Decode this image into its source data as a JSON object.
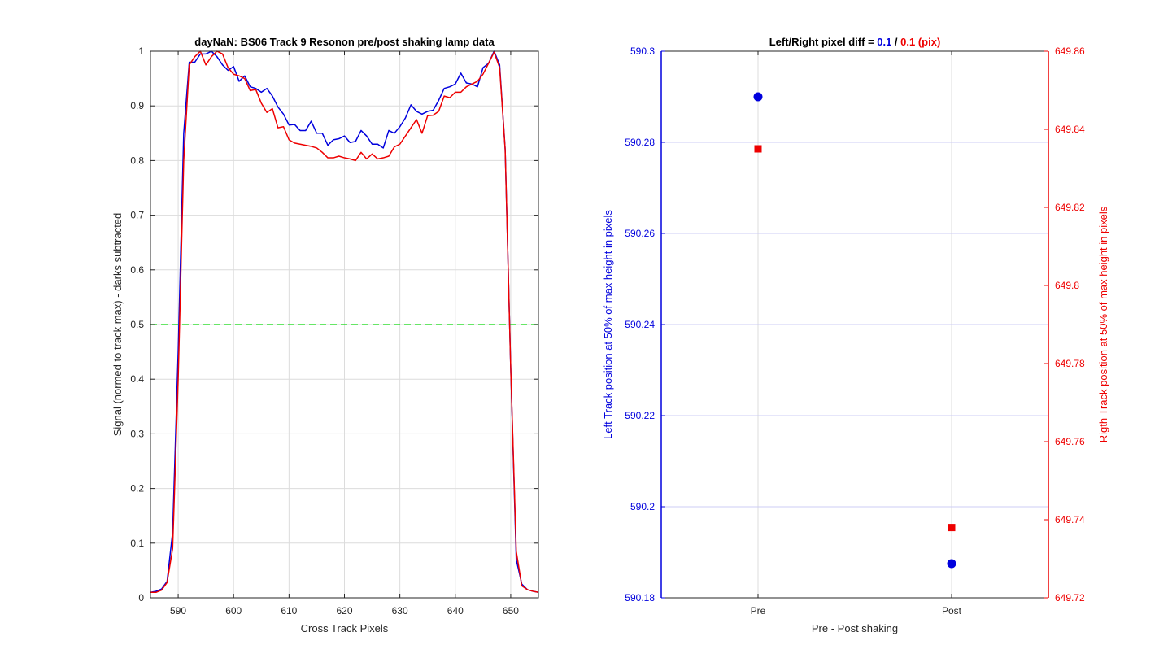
{
  "chart_data": [
    {
      "type": "line",
      "title": "dayNaN: BS06  Track 9 Resonon pre/post shaking lamp data",
      "xlabel": "Cross Track Pixels",
      "ylabel": "Signal (normed to track max) - darks subtracted",
      "xlim": [
        585,
        655
      ],
      "ylim": [
        0,
        1
      ],
      "xticks": [
        "590",
        "600",
        "610",
        "620",
        "630",
        "640",
        "650"
      ],
      "yticks": [
        "0",
        "0.1",
        "0.2",
        "0.3",
        "0.4",
        "0.5",
        "0.6",
        "0.7",
        "0.8",
        "0.9",
        "1"
      ],
      "grid": true,
      "threshold": {
        "y": 0.5,
        "color": "#33dd33",
        "style": "dashed"
      },
      "series": [
        {
          "color": "#0000dd",
          "x": [
            585,
            586,
            587,
            588,
            589,
            590,
            591,
            592,
            593,
            594,
            595,
            596,
            597,
            598,
            599,
            600,
            601,
            602,
            603,
            604,
            605,
            606,
            607,
            608,
            609,
            610,
            611,
            612,
            613,
            614,
            615,
            616,
            617,
            618,
            619,
            620,
            621,
            622,
            623,
            624,
            625,
            626,
            627,
            628,
            629,
            630,
            631,
            632,
            633,
            634,
            635,
            636,
            637,
            638,
            639,
            640,
            641,
            642,
            643,
            644,
            645,
            646,
            647,
            648,
            649,
            650,
            651,
            652,
            653,
            654,
            655
          ],
          "y": [
            0.01,
            0.012,
            0.016,
            0.03,
            0.12,
            0.45,
            0.85,
            0.98,
            0.98,
            0.995,
            0.995,
            1.0,
            0.99,
            0.975,
            0.965,
            0.972,
            0.945,
            0.955,
            0.935,
            0.932,
            0.925,
            0.932,
            0.918,
            0.898,
            0.885,
            0.865,
            0.866,
            0.855,
            0.855,
            0.872,
            0.85,
            0.85,
            0.828,
            0.838,
            0.84,
            0.845,
            0.833,
            0.835,
            0.855,
            0.845,
            0.83,
            0.83,
            0.823,
            0.855,
            0.85,
            0.862,
            0.878,
            0.902,
            0.89,
            0.885,
            0.89,
            0.892,
            0.91,
            0.932,
            0.935,
            0.94,
            0.96,
            0.942,
            0.94,
            0.935,
            0.97,
            0.978,
            1.0,
            0.975,
            0.82,
            0.42,
            0.07,
            0.025,
            0.015,
            0.012,
            0.01
          ]
        },
        {
          "color": "#ee0000",
          "x": [
            585,
            586,
            587,
            588,
            589,
            590,
            591,
            592,
            593,
            594,
            595,
            596,
            597,
            598,
            599,
            600,
            601,
            602,
            603,
            604,
            605,
            606,
            607,
            608,
            609,
            610,
            611,
            612,
            613,
            614,
            615,
            616,
            617,
            618,
            619,
            620,
            621,
            622,
            623,
            624,
            625,
            626,
            627,
            628,
            629,
            630,
            631,
            632,
            633,
            634,
            635,
            636,
            637,
            638,
            639,
            640,
            641,
            642,
            643,
            644,
            645,
            646,
            647,
            648,
            649,
            650,
            651,
            652,
            653,
            654,
            655
          ],
          "y": [
            0.01,
            0.01,
            0.014,
            0.028,
            0.09,
            0.4,
            0.8,
            0.975,
            0.99,
            1.0,
            0.975,
            0.99,
            1.0,
            0.995,
            0.97,
            0.958,
            0.955,
            0.95,
            0.928,
            0.93,
            0.905,
            0.888,
            0.895,
            0.86,
            0.862,
            0.838,
            0.832,
            0.83,
            0.828,
            0.826,
            0.823,
            0.815,
            0.805,
            0.805,
            0.808,
            0.805,
            0.803,
            0.8,
            0.815,
            0.803,
            0.812,
            0.803,
            0.805,
            0.808,
            0.825,
            0.83,
            0.845,
            0.86,
            0.875,
            0.85,
            0.882,
            0.883,
            0.89,
            0.918,
            0.915,
            0.925,
            0.925,
            0.935,
            0.94,
            0.945,
            0.958,
            0.978,
            0.998,
            0.97,
            0.82,
            0.42,
            0.085,
            0.022,
            0.015,
            0.012,
            0.01
          ]
        }
      ]
    },
    {
      "type": "scatter",
      "title_prefix": "Left/Right pixel diff = ",
      "title_left_val": "0.1",
      "title_sep": " / ",
      "title_right_val": "0.1 (pix)",
      "xlabel": "Pre - Post shaking",
      "ylabel_left": "Left Track position at 50% of max height in pixels",
      "ylabel_right": "Rigth Track position at 50% of max height in pixels",
      "categories": [
        "Pre",
        "Post"
      ],
      "ylim_left": [
        590.18,
        590.3
      ],
      "ylim_right": [
        649.72,
        649.86
      ],
      "yticks_left": [
        "590.18",
        "590.2",
        "590.22",
        "590.24",
        "590.26",
        "590.28",
        "590.3"
      ],
      "yticks_right": [
        "649.72",
        "649.74",
        "649.76",
        "649.78",
        "649.8",
        "649.82",
        "649.84",
        "649.86"
      ],
      "grid": true,
      "left_color": "#0000dd",
      "right_color": "#ee0000",
      "series": [
        {
          "axis": "left",
          "marker": "circle",
          "color": "#0000dd",
          "values": [
            590.29,
            590.1875
          ]
        },
        {
          "axis": "right",
          "marker": "square",
          "color": "#ee0000",
          "values": [
            649.835,
            649.738
          ]
        }
      ]
    }
  ]
}
